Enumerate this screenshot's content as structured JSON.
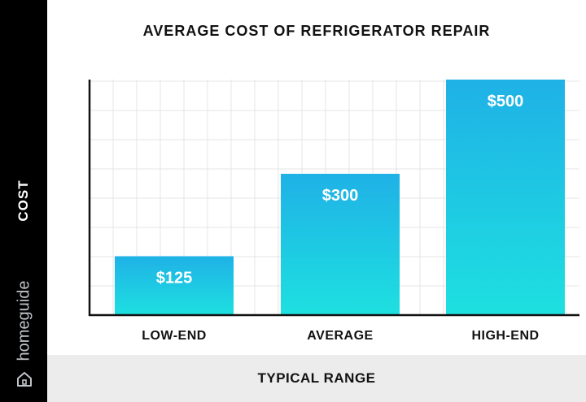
{
  "brand": "homeguide",
  "icons": {
    "home": "home-icon"
  },
  "colors": {
    "bar_top": "#1fb1e6",
    "bar_bottom": "#1ee0e0",
    "sidebar": "#000000",
    "footer": "#ececec",
    "grid": "#e4e4e4"
  },
  "chart_data": {
    "type": "bar",
    "title": "AVERAGE COST OF REFRIGERATOR REPAIR",
    "xlabel": "TYPICAL RANGE",
    "ylabel": "COST",
    "categories": [
      "LOW-END",
      "AVERAGE",
      "HIGH-END"
    ],
    "values": [
      125,
      300,
      500
    ],
    "data_labels": [
      "$125",
      "$300",
      "$500"
    ],
    "ylim": [
      0,
      500
    ],
    "grid": true,
    "legend": "none"
  }
}
